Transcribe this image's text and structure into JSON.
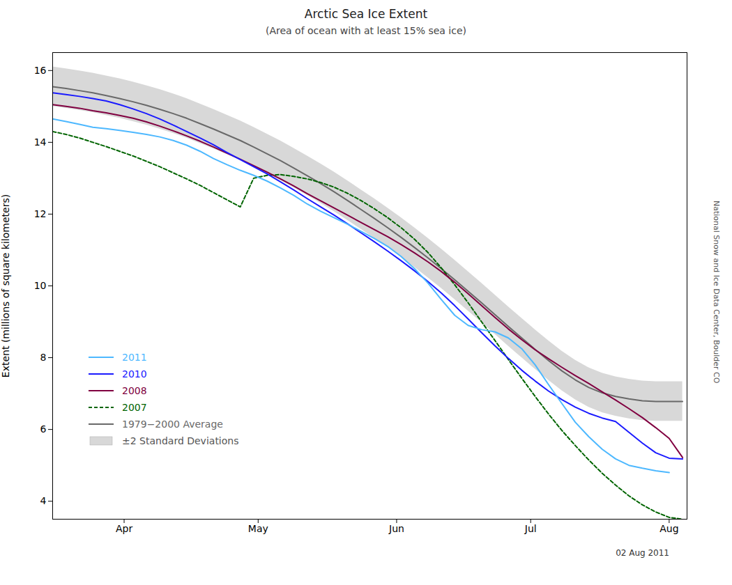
{
  "chart_data": {
    "type": "line",
    "title": "Arctic Sea Ice Extent",
    "subtitle": "(Area of ocean with at least 15% sea ice)",
    "ylabel": "Extent (millions of square kilometers)",
    "annotations": [
      "National Snow and Ice Data Center, Boulder CO",
      "02 Aug 2011"
    ],
    "xlim": [
      75,
      217
    ],
    "xticks": [
      {
        "value": 91,
        "label": "Apr"
      },
      {
        "value": 121,
        "label": "May"
      },
      {
        "value": 152,
        "label": "Jun"
      },
      {
        "value": 182,
        "label": "Jul"
      },
      {
        "value": 213,
        "label": "Aug"
      }
    ],
    "ylim": [
      3.5,
      16.5
    ],
    "yticks": [
      4,
      6,
      8,
      10,
      12,
      14,
      16
    ],
    "grid": false,
    "legend": "lower left",
    "series": [
      {
        "name": "2011",
        "type": "line",
        "color": "#4db8ff",
        "line_style": "solid",
        "x": [
          75,
          78,
          81,
          84,
          87,
          90,
          93,
          96,
          99,
          102,
          105,
          108,
          111,
          114,
          117,
          120,
          123,
          126,
          129,
          132,
          135,
          138,
          141,
          144,
          147,
          150,
          153,
          156,
          159,
          162,
          165,
          168,
          171,
          174,
          177,
          180,
          183,
          186,
          189,
          192,
          195,
          198,
          201,
          204,
          207,
          210,
          213
        ],
        "values": [
          14.65,
          14.58,
          14.5,
          14.42,
          14.38,
          14.33,
          14.28,
          14.22,
          14.15,
          14.05,
          13.92,
          13.75,
          13.55,
          13.38,
          13.22,
          13.08,
          12.92,
          12.73,
          12.52,
          12.28,
          12.08,
          11.9,
          11.72,
          11.52,
          11.32,
          11.1,
          10.82,
          10.48,
          10.08,
          9.62,
          9.18,
          8.9,
          8.78,
          8.72,
          8.55,
          8.25,
          7.8,
          7.25,
          6.72,
          6.2,
          5.8,
          5.45,
          5.18,
          5.0,
          4.92,
          4.85,
          4.8
        ]
      },
      {
        "name": "2010",
        "type": "line",
        "color": "#1a1aff",
        "line_style": "solid",
        "x": [
          75,
          78,
          81,
          84,
          87,
          90,
          93,
          96,
          99,
          102,
          105,
          108,
          111,
          114,
          117,
          120,
          123,
          126,
          129,
          132,
          135,
          138,
          141,
          144,
          147,
          150,
          153,
          156,
          159,
          162,
          165,
          168,
          171,
          174,
          177,
          180,
          183,
          186,
          189,
          192,
          195,
          198,
          201,
          204,
          207,
          210,
          213,
          216
        ],
        "values": [
          15.38,
          15.33,
          15.28,
          15.22,
          15.15,
          15.05,
          14.93,
          14.8,
          14.65,
          14.48,
          14.3,
          14.12,
          13.93,
          13.72,
          13.52,
          13.32,
          13.12,
          12.9,
          12.67,
          12.43,
          12.2,
          11.97,
          11.73,
          11.48,
          11.23,
          10.97,
          10.7,
          10.42,
          10.12,
          9.8,
          9.45,
          9.08,
          8.7,
          8.33,
          7.98,
          7.65,
          7.35,
          7.07,
          6.83,
          6.62,
          6.45,
          6.32,
          6.22,
          5.92,
          5.62,
          5.35,
          5.2,
          5.18
        ]
      },
      {
        "name": "2008",
        "type": "line",
        "color": "#800040",
        "line_style": "solid",
        "x": [
          75,
          78,
          81,
          84,
          87,
          90,
          93,
          96,
          99,
          102,
          105,
          108,
          111,
          114,
          117,
          120,
          123,
          126,
          129,
          132,
          135,
          138,
          141,
          144,
          147,
          150,
          153,
          156,
          159,
          162,
          165,
          168,
          171,
          174,
          177,
          180,
          183,
          186,
          189,
          192,
          195,
          198,
          201,
          204,
          207,
          210,
          213,
          216
        ],
        "values": [
          15.05,
          15.0,
          14.95,
          14.88,
          14.82,
          14.75,
          14.67,
          14.57,
          14.45,
          14.32,
          14.18,
          14.03,
          13.87,
          13.7,
          13.53,
          13.35,
          13.17,
          12.98,
          12.78,
          12.57,
          12.37,
          12.17,
          11.97,
          11.77,
          11.57,
          11.37,
          11.15,
          10.92,
          10.67,
          10.4,
          10.1,
          9.78,
          9.45,
          9.12,
          8.8,
          8.5,
          8.22,
          7.97,
          7.73,
          7.5,
          7.28,
          7.05,
          6.82,
          6.58,
          6.33,
          6.05,
          5.75,
          5.22
        ]
      },
      {
        "name": "2007",
        "type": "line",
        "color": "#006400",
        "line_style": "dashed",
        "x": [
          75,
          78,
          81,
          84,
          87,
          90,
          93,
          96,
          99,
          102,
          105,
          108,
          111,
          114,
          117,
          120,
          123,
          126,
          129,
          132,
          135,
          138,
          141,
          144,
          147,
          150,
          153,
          156,
          159,
          162,
          165,
          168,
          171,
          174,
          177,
          180,
          183,
          186,
          189,
          192,
          195,
          198,
          201,
          204,
          207,
          210,
          213,
          216
        ],
        "values": [
          14.3,
          14.22,
          14.12,
          14.0,
          13.88,
          13.75,
          13.62,
          13.47,
          13.32,
          13.15,
          12.98,
          12.8,
          12.6,
          12.4,
          12.2,
          13.0,
          13.08,
          13.1,
          13.05,
          12.98,
          12.88,
          12.75,
          12.58,
          12.38,
          12.15,
          11.9,
          11.62,
          11.3,
          10.93,
          10.5,
          10.03,
          9.53,
          9.0,
          8.48,
          7.95,
          7.43,
          6.92,
          6.43,
          5.97,
          5.55,
          5.15,
          4.78,
          4.45,
          4.15,
          3.9,
          3.7,
          3.55,
          3.5
        ]
      },
      {
        "name": "1979−2000 Average",
        "type": "line",
        "color": "#696969",
        "line_style": "solid",
        "x": [
          75,
          78,
          81,
          84,
          87,
          90,
          93,
          96,
          99,
          102,
          105,
          108,
          111,
          114,
          117,
          120,
          123,
          126,
          129,
          132,
          135,
          138,
          141,
          144,
          147,
          150,
          153,
          156,
          159,
          162,
          165,
          168,
          171,
          174,
          177,
          180,
          183,
          186,
          189,
          192,
          195,
          198,
          201,
          204,
          207,
          210,
          213,
          216
        ],
        "values": [
          15.55,
          15.5,
          15.44,
          15.38,
          15.3,
          15.22,
          15.13,
          15.03,
          14.92,
          14.8,
          14.67,
          14.52,
          14.37,
          14.21,
          14.05,
          13.87,
          13.68,
          13.49,
          13.28,
          13.07,
          12.85,
          12.62,
          12.38,
          12.13,
          11.88,
          11.62,
          11.35,
          11.07,
          10.78,
          10.48,
          10.17,
          9.85,
          9.53,
          9.2,
          8.87,
          8.55,
          8.23,
          7.92,
          7.63,
          7.38,
          7.17,
          7.02,
          6.92,
          6.85,
          6.8,
          6.78,
          6.78,
          6.78
        ]
      },
      {
        "name": "±2 Standard Deviations",
        "type": "area",
        "color": "#d8d8d8",
        "x": [
          75,
          78,
          81,
          84,
          87,
          90,
          93,
          96,
          99,
          102,
          105,
          108,
          111,
          114,
          117,
          120,
          123,
          126,
          129,
          132,
          135,
          138,
          141,
          144,
          147,
          150,
          153,
          156,
          159,
          162,
          165,
          168,
          171,
          174,
          177,
          180,
          183,
          186,
          189,
          192,
          195,
          198,
          201,
          204,
          207,
          210,
          213,
          216
        ],
        "lower": [
          15.0,
          14.95,
          14.89,
          14.83,
          14.75,
          14.67,
          14.58,
          14.48,
          14.37,
          14.25,
          14.12,
          13.97,
          13.82,
          13.66,
          13.5,
          13.32,
          13.13,
          12.94,
          12.73,
          12.52,
          12.3,
          12.07,
          11.83,
          11.58,
          11.33,
          11.07,
          10.8,
          10.52,
          10.23,
          9.93,
          9.62,
          9.3,
          8.98,
          8.65,
          8.32,
          8.0,
          7.68,
          7.37,
          7.08,
          6.83,
          6.62,
          6.47,
          6.37,
          6.3,
          6.25,
          6.23,
          6.23,
          6.23
        ],
        "upper": [
          16.1,
          16.05,
          15.99,
          15.93,
          15.85,
          15.77,
          15.68,
          15.58,
          15.47,
          15.35,
          15.22,
          15.07,
          14.92,
          14.76,
          14.6,
          14.42,
          14.23,
          14.04,
          13.83,
          13.62,
          13.4,
          13.17,
          12.93,
          12.68,
          12.43,
          12.17,
          11.9,
          11.62,
          11.33,
          11.03,
          10.72,
          10.4,
          10.08,
          9.75,
          9.42,
          9.1,
          8.78,
          8.47,
          8.18,
          7.93,
          7.72,
          7.57,
          7.47,
          7.4,
          7.35,
          7.33,
          7.33,
          7.33
        ]
      }
    ]
  }
}
